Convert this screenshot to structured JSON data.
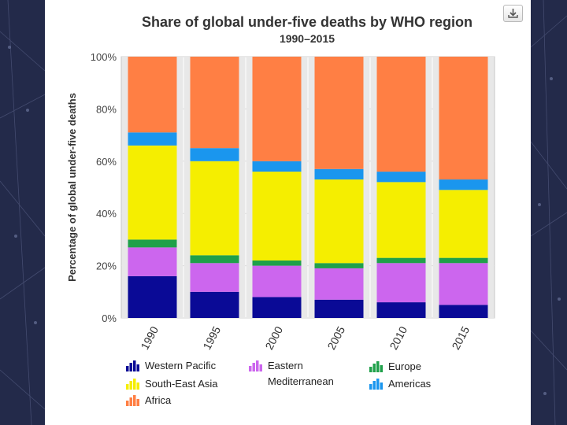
{
  "toolbar": {
    "download_icon": "download-icon"
  },
  "chart_data": {
    "type": "bar",
    "stacked": true,
    "title": "Share of global under-five deaths by WHO region",
    "subtitle": "1990–2015",
    "xlabel": "",
    "ylabel": "Percentage of global under-five deaths",
    "ylim": [
      0,
      100
    ],
    "y_ticks": [
      "0%",
      "20%",
      "40%",
      "60%",
      "80%",
      "100%"
    ],
    "grid": true,
    "legend_position": "bottom",
    "categories": [
      "1990",
      "1995",
      "2000",
      "2005",
      "2010",
      "2015"
    ],
    "series": [
      {
        "name": "Western Pacific",
        "color": "#0a0a96",
        "values": [
          16,
          10,
          8,
          7,
          6,
          5
        ]
      },
      {
        "name": "Eastern Mediterranean",
        "color": "#cc66ee",
        "values": [
          11,
          11,
          12,
          12,
          15,
          16
        ]
      },
      {
        "name": "Europe",
        "color": "#1fa04a",
        "values": [
          3,
          3,
          2,
          2,
          2,
          2
        ]
      },
      {
        "name": "South-East Asia",
        "color": "#f5ee00",
        "values": [
          36,
          36,
          34,
          32,
          29,
          26
        ]
      },
      {
        "name": "Americas",
        "color": "#1a96ee",
        "values": [
          5,
          5,
          4,
          4,
          4,
          4
        ]
      },
      {
        "name": "Africa",
        "color": "#ff7f44",
        "values": [
          29,
          35,
          40,
          43,
          44,
          47
        ]
      }
    ]
  }
}
